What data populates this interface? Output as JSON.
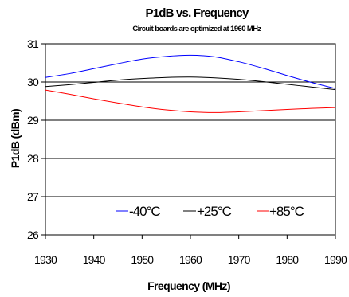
{
  "chart_data": {
    "type": "line",
    "title": "P1dB vs. Frequency",
    "subtitle": "Circuit boards are optimized at 1960 MHz",
    "xlabel": "Frequency (MHz)",
    "ylabel": "P1dB (dBm)",
    "xlim": [
      1930,
      1990
    ],
    "ylim": [
      26,
      31
    ],
    "xticks": [
      "1930",
      "1940",
      "1950",
      "1960",
      "1970",
      "1980",
      "1990"
    ],
    "yticks": [
      "26",
      "27",
      "28",
      "29",
      "30",
      "31"
    ],
    "grid": "horizontal",
    "legend_position": "inside-bottom",
    "series": [
      {
        "name": "-40°C",
        "color": "#0000ff",
        "x": [
          1930,
          1935,
          1940,
          1945,
          1950,
          1955,
          1960,
          1965,
          1970,
          1975,
          1980,
          1985,
          1990
        ],
        "y": [
          30.12,
          30.22,
          30.35,
          30.48,
          30.6,
          30.67,
          30.7,
          30.66,
          30.53,
          30.36,
          30.17,
          29.99,
          29.83
        ]
      },
      {
        "name": "+25°C",
        "color": "#000000",
        "x": [
          1930,
          1935,
          1940,
          1945,
          1950,
          1955,
          1960,
          1965,
          1970,
          1975,
          1980,
          1985,
          1990
        ],
        "y": [
          29.88,
          29.93,
          29.99,
          30.05,
          30.09,
          30.12,
          30.13,
          30.11,
          30.07,
          30.01,
          29.94,
          29.87,
          29.8
        ]
      },
      {
        "name": "+85°C",
        "color": "#ff0000",
        "x": [
          1930,
          1935,
          1940,
          1945,
          1950,
          1955,
          1960,
          1965,
          1970,
          1975,
          1980,
          1985,
          1990
        ],
        "y": [
          29.79,
          29.68,
          29.56,
          29.45,
          29.35,
          29.27,
          29.22,
          29.2,
          29.22,
          29.25,
          29.28,
          29.31,
          29.33
        ]
      }
    ]
  }
}
